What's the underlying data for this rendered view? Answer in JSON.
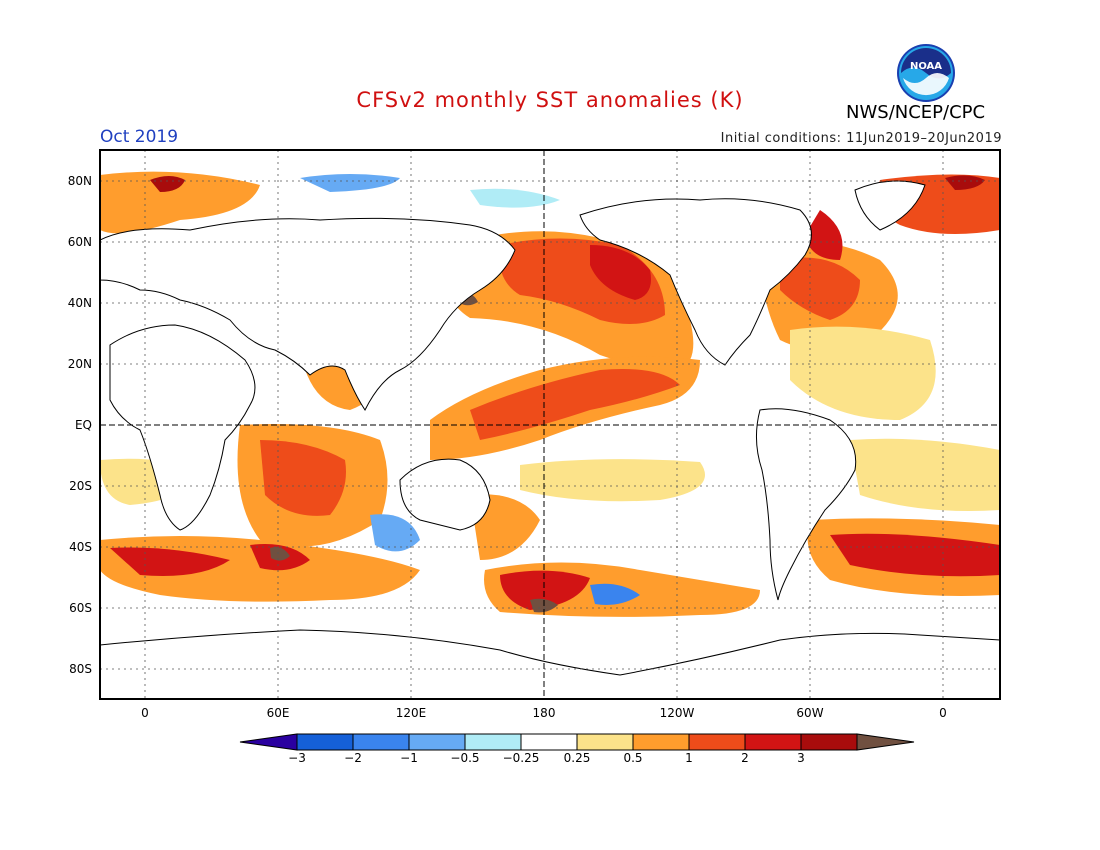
{
  "title": "CFSv2 monthly SST anomalies (K)",
  "valid_month": "Oct 2019",
  "initial_conditions": "Initial conditions: 11Jun2019–20Jun2019",
  "agency": "NWS/NCEP/CPC",
  "logo_text": "NOAA",
  "lat_labels": [
    "80N",
    "60N",
    "40N",
    "20N",
    "EQ",
    "20S",
    "40S",
    "60S",
    "80S"
  ],
  "lon_labels": [
    "0",
    "60E",
    "120E",
    "180",
    "120W",
    "60W",
    "0"
  ],
  "colorbar": {
    "ticks": [
      "−3",
      "−2",
      "−1",
      "−0.5",
      "−0.25",
      "0.25",
      "0.5",
      "1",
      "2",
      "3"
    ],
    "colors": [
      "#2a00a0",
      "#1560d8",
      "#3a84ee",
      "#66aaf4",
      "#b0ecf6",
      "#ffffff",
      "#fce38a",
      "#ff9d2d",
      "#ee4c1a",
      "#d21414",
      "#a80c0c",
      "#705040"
    ]
  }
}
